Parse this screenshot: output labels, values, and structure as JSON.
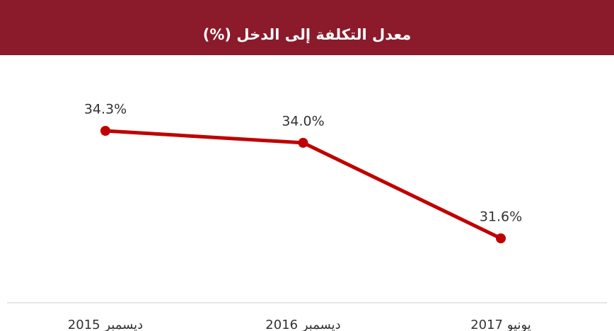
{
  "chart_data": {
    "type": "line",
    "title": "معدل التكلفة إلى الدخل (%)",
    "categories": [
      "ديسمبر 2015",
      "ديسمبر 2016",
      "يونيو 2017"
    ],
    "series": [
      {
        "name": null,
        "color": "#c00000",
        "values": [
          34.3,
          34.0,
          31.6
        ],
        "value_labels": [
          "34.3%",
          "34.0%",
          "31.6%"
        ]
      }
    ],
    "header_color": "#8b1a2b"
  }
}
